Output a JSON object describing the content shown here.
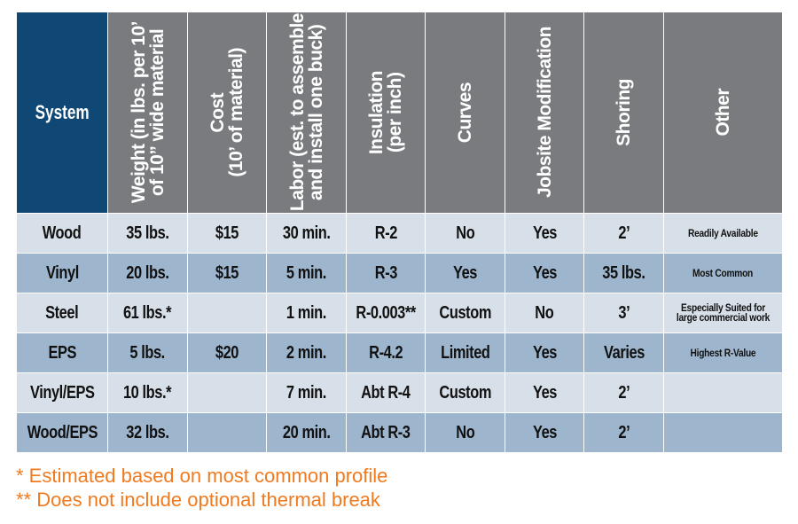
{
  "table": {
    "headers": [
      "System",
      "Weight (in lbs. per 10’\nof 10” wide material",
      "Cost\n(10’ of material)",
      "Labor (est. to assemble\nand install one buck)",
      "Insulation\n(per inch)",
      "Curves",
      "Jobsite Modification",
      "Shoring",
      "Other"
    ],
    "rows": [
      {
        "system": "Wood",
        "weight": "35 lbs.",
        "cost": "$15",
        "labor": "30 min.",
        "insulation": "R-2",
        "curves": "No",
        "jobsite": "Yes",
        "shoring": "2’",
        "other": "Readily Available"
      },
      {
        "system": "Vinyl",
        "weight": "20 lbs.",
        "cost": "$15",
        "labor": "5 min.",
        "insulation": "R-3",
        "curves": "Yes",
        "jobsite": "Yes",
        "shoring": "35 lbs.",
        "other": "Most Common"
      },
      {
        "system": "Steel",
        "weight": "61 lbs.*",
        "cost": "",
        "labor": "1 min.",
        "insulation": "R-0.003**",
        "curves": "Custom",
        "jobsite": "No",
        "shoring": "3’",
        "other": "Especially Suited for large commercial work"
      },
      {
        "system": "EPS",
        "weight": "5 lbs.",
        "cost": "$20",
        "labor": "2 min.",
        "insulation": "R-4.2",
        "curves": "Limited",
        "jobsite": "Yes",
        "shoring": "Varies",
        "other": "Highest R-Value"
      },
      {
        "system": "Vinyl/EPS",
        "weight": "10 lbs.*",
        "cost": "",
        "labor": "7 min.",
        "insulation": "Abt R-4",
        "curves": "Custom",
        "jobsite": "Yes",
        "shoring": "2’",
        "other": ""
      },
      {
        "system": "Wood/EPS",
        "weight": "32 lbs.",
        "cost": "",
        "labor": "20 min.",
        "insulation": "Abt R-3",
        "curves": "No",
        "jobsite": "Yes",
        "shoring": "2’",
        "other": ""
      }
    ]
  },
  "footnotes": [
    "* Estimated based on most common profile",
    "** Does not include optional thermal break"
  ],
  "colors": {
    "header_system": "#0f4874",
    "header_other": "#7a7b7e",
    "row_light": "#d7dfe8",
    "row_dark": "#9db5cd",
    "footnote": "#f07a1f"
  }
}
